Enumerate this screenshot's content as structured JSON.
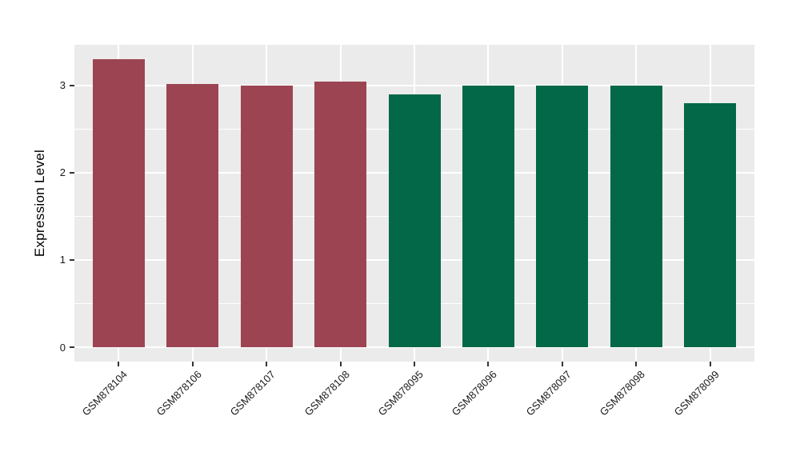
{
  "chart_data": {
    "type": "bar",
    "title": "",
    "xlabel": "",
    "ylabel": "Expression Level",
    "categories": [
      "GSM878104",
      "GSM878106",
      "GSM878107",
      "GSM878108",
      "GSM878095",
      "GSM878096",
      "GSM878097",
      "GSM878098",
      "GSM878099"
    ],
    "values": [
      3.3,
      3.02,
      3.0,
      3.04,
      2.9,
      3.0,
      3.0,
      3.0,
      2.8
    ],
    "bar_colors": [
      "#9C4452",
      "#9C4452",
      "#9C4452",
      "#9C4452",
      "#026847",
      "#026847",
      "#026847",
      "#026847",
      "#026847"
    ],
    "group_colors": {
      "red_group": "#9C4452",
      "green_group": "#026847"
    },
    "y_ticks": [
      "0",
      "1",
      "2",
      "3"
    ],
    "y_tick_values": [
      0,
      1,
      2,
      3
    ],
    "y_minor_values": [
      0.5,
      1.5,
      2.5
    ],
    "ylim": [
      -0.165,
      3.465
    ],
    "bar_width_fraction": 0.7,
    "x_label_angle_deg": 45,
    "panel_background": "#EBEBEB",
    "gridline_color": "#FFFFFF",
    "tick_color": "#333333",
    "grid": true,
    "legend_position": "none"
  }
}
